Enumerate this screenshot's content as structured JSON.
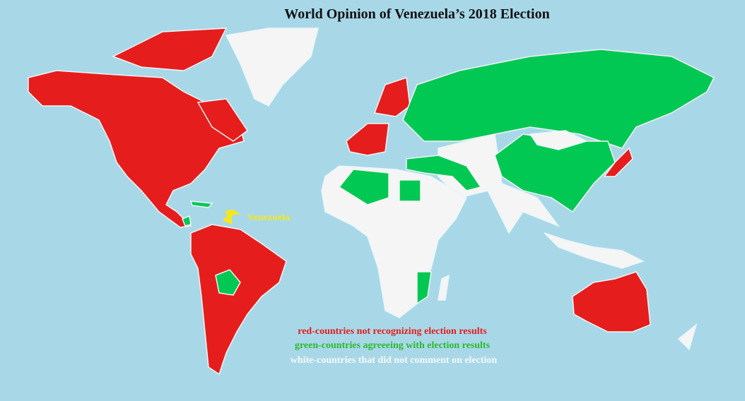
{
  "title": "World Opinion of Venezuela’s 2018 Election",
  "annotation": "Venezuela",
  "legend": [
    "red-countries not recognizing election results",
    "green-countries agreeeing with election results",
    "white-countries that did not comment on election"
  ]
}
